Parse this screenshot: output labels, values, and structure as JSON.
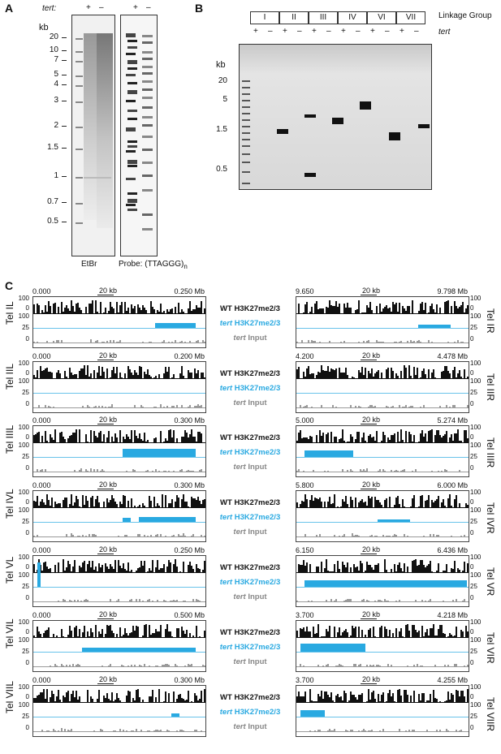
{
  "panelA": {
    "letter": "A",
    "tert_label": "tert:",
    "lanes": [
      "+",
      "–",
      "+",
      "–"
    ],
    "kb_label": "kb",
    "ticks": [
      "20",
      "10",
      "7",
      "5",
      "4",
      "3",
      "2",
      "1.5",
      "1",
      "0.7",
      "0.5"
    ],
    "left_caption": "EtBr",
    "right_caption": "Probe: (TTAGGG)",
    "right_caption_sub": "n"
  },
  "panelB": {
    "letter": "B",
    "groups": [
      "I",
      "II",
      "III",
      "IV",
      "VI",
      "VII"
    ],
    "linkage_label": "Linkage Group",
    "tert_label": "tert",
    "lanes": [
      "+",
      "–",
      "+",
      "–",
      "+",
      "–",
      "+",
      "–",
      "+",
      "–",
      "+",
      "–"
    ],
    "kb_label": "kb",
    "ticks": [
      "20",
      "5",
      "1.5",
      "0.5"
    ]
  },
  "panelC": {
    "letter": "C",
    "scale_label": "20 kb",
    "track_names": {
      "wt": "WT H3K27me2/3",
      "mt_italic": "tert",
      "mt_rest": " H3K27me2/3",
      "inp_italic": "tert",
      "inp_rest": " Input"
    },
    "axis": [
      "100",
      "0",
      "100",
      "25",
      "0"
    ],
    "rows": [
      {
        "left": {
          "label": "Tel IL",
          "start": "0.000",
          "end": "0.250 Mb"
        },
        "right": {
          "label": "Tel IR",
          "start": "9.650",
          "end": "9.798 Mb"
        }
      },
      {
        "left": {
          "label": "Tel IIL",
          "start": "0.000",
          "end": "0.200 Mb"
        },
        "right": {
          "label": "Tel IIR",
          "start": "4.200",
          "end": "4.478 Mb"
        }
      },
      {
        "left": {
          "label": "Tel IIIL",
          "start": "0.000",
          "end": "0.300 Mb"
        },
        "right": {
          "label": "Tel IIIR",
          "start": "5.000",
          "end": "5.274 Mb"
        }
      },
      {
        "left": {
          "label": "Tel IVL",
          "start": "0.000",
          "end": "0.300 Mb"
        },
        "right": {
          "label": "Tel IVR",
          "start": "5.800",
          "end": "6.000 Mb"
        }
      },
      {
        "left": {
          "label": "Tel VL",
          "start": "0.000",
          "end": "0.250 Mb"
        },
        "right": {
          "label": "Tel VR",
          "start": "6.150",
          "end": "6.436 Mb"
        }
      },
      {
        "left": {
          "label": "Tel VIL",
          "start": "0.000",
          "end": "0.500 Mb"
        },
        "right": {
          "label": "Tel VIR",
          "start": "3.700",
          "end": "4.218 Mb"
        }
      },
      {
        "left": {
          "label": "Tel VIIL",
          "start": "0.000",
          "end": "0.300 Mb"
        },
        "right": {
          "label": "Tel VIIR",
          "start": "3.700",
          "end": "4.255 Mb"
        }
      }
    ],
    "colors": {
      "wt": "#111111",
      "mt": "#29a9e1",
      "inp": "#9a9a9a"
    }
  }
}
